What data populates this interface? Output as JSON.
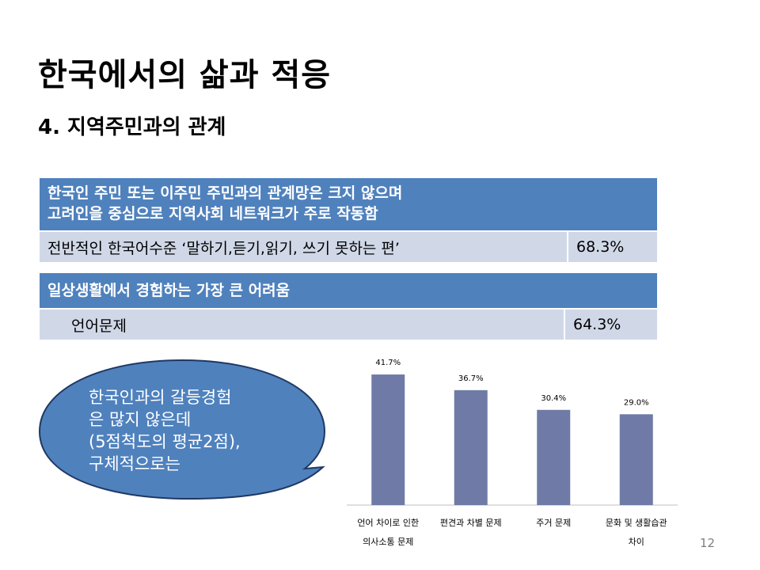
{
  "slide": {
    "title": "한국에서의 삶과 적응",
    "subtitle": "4. 지역주민과의 관계",
    "page_number": "12"
  },
  "table1": {
    "header_line1": "한국인 주민 또는 이주민 주민과의 관계망은 크지 않으며",
    "header_line2": "고려인을 중심으로 지역사회 네트워크가 주로 작동함",
    "row_label": "전반적인 한국어수준 ‘말하기,듣기,읽기, 쓰기 못하는 편’",
    "row_value": "68.3%"
  },
  "table2": {
    "header": "일상생활에서 경험하는 가장 큰 어려움",
    "row_label": "언어문제",
    "row_value": "64.3%"
  },
  "callout": {
    "lines": [
      "한국인과의 갈등경험",
      "은 많지 않은데",
      "(5점척도의 평균2점),",
      "구체적으로는"
    ],
    "fill_color": "#4f81bd",
    "stroke_color": "#1f3864"
  },
  "chart_data": {
    "type": "bar",
    "categories": [
      [
        "언어 차이로 인한",
        "의사소통 문제"
      ],
      [
        "편견과 차별 문제"
      ],
      [
        "주거 문제"
      ],
      [
        "문화 및 생활습관",
        "차이"
      ]
    ],
    "values": [
      41.7,
      36.7,
      30.4,
      29.0
    ],
    "value_labels": [
      "41.7%",
      "36.7%",
      "30.4%",
      "29.0%"
    ],
    "ylim": [
      0,
      45
    ],
    "bar_color": "#6f7ba6",
    "grid": false
  }
}
